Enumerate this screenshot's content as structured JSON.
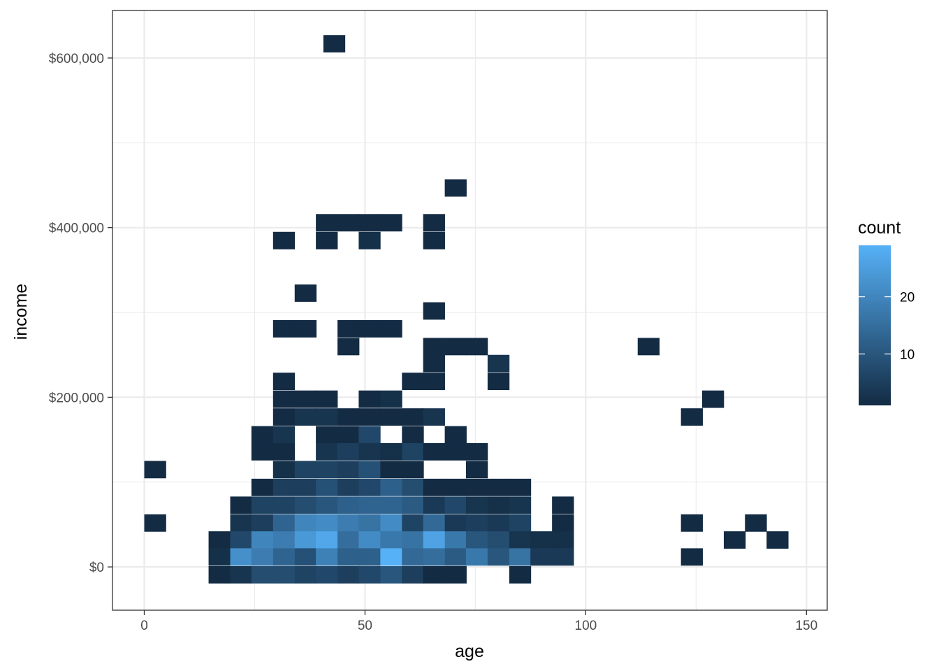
{
  "chart_data": {
    "type": "heatmap",
    "title": "",
    "xlabel": "age",
    "ylabel": "income",
    "xlim": [
      -7.2,
      154.7
    ],
    "ylim": [
      -51000,
      656000
    ],
    "x_ticks": [
      0,
      50,
      100,
      150
    ],
    "x_tick_labels": [
      "0",
      "50",
      "100",
      "150"
    ],
    "y_ticks": [
      0,
      200000,
      400000,
      600000
    ],
    "y_tick_labels": [
      "$0",
      "$200,000",
      "$400,000",
      "$600,000"
    ],
    "grid": true,
    "legend": {
      "title": "count",
      "position": "right",
      "min": 1,
      "max": 29,
      "ticks": [
        10,
        20
      ],
      "tick_labels": [
        "10",
        "20"
      ],
      "color_low": "#132B43",
      "color_high": "#56B1F7"
    },
    "bin_width_x": 4.86,
    "bin_height_y": 20000,
    "bins": [
      {
        "x": 2.43,
        "y": 115000,
        "count": 1
      },
      {
        "x": 2.43,
        "y": 52000,
        "count": 1
      },
      {
        "x": 17.0,
        "y": 32000,
        "count": 1
      },
      {
        "x": 17.0,
        "y": 12000,
        "count": 2
      },
      {
        "x": 17.0,
        "y": -9000,
        "count": 1
      },
      {
        "x": 21.9,
        "y": 73000,
        "count": 1
      },
      {
        "x": 21.9,
        "y": 52000,
        "count": 3
      },
      {
        "x": 21.9,
        "y": 32000,
        "count": 7
      },
      {
        "x": 21.9,
        "y": 12000,
        "count": 22
      },
      {
        "x": 21.9,
        "y": -9000,
        "count": 3
      },
      {
        "x": 26.7,
        "y": 156000,
        "count": 1
      },
      {
        "x": 26.7,
        "y": 136000,
        "count": 1
      },
      {
        "x": 26.7,
        "y": 94000,
        "count": 1
      },
      {
        "x": 26.7,
        "y": 73000,
        "count": 6
      },
      {
        "x": 26.7,
        "y": 52000,
        "count": 5
      },
      {
        "x": 26.7,
        "y": 32000,
        "count": 20
      },
      {
        "x": 26.7,
        "y": 12000,
        "count": 18
      },
      {
        "x": 26.7,
        "y": -9000,
        "count": 8
      },
      {
        "x": 31.6,
        "y": 385000,
        "count": 1
      },
      {
        "x": 31.6,
        "y": 281000,
        "count": 1
      },
      {
        "x": 31.6,
        "y": 219000,
        "count": 1
      },
      {
        "x": 31.6,
        "y": 198000,
        "count": 1
      },
      {
        "x": 31.6,
        "y": 177000,
        "count": 1
      },
      {
        "x": 31.6,
        "y": 156000,
        "count": 3
      },
      {
        "x": 31.6,
        "y": 136000,
        "count": 1
      },
      {
        "x": 31.6,
        "y": 115000,
        "count": 2
      },
      {
        "x": 31.6,
        "y": 94000,
        "count": 5
      },
      {
        "x": 31.6,
        "y": 73000,
        "count": 6
      },
      {
        "x": 31.6,
        "y": 52000,
        "count": 13
      },
      {
        "x": 31.6,
        "y": 32000,
        "count": 18
      },
      {
        "x": 31.6,
        "y": 12000,
        "count": 13
      },
      {
        "x": 31.6,
        "y": -9000,
        "count": 8
      },
      {
        "x": 36.5,
        "y": 323000,
        "count": 1
      },
      {
        "x": 36.5,
        "y": 281000,
        "count": 1
      },
      {
        "x": 36.5,
        "y": 198000,
        "count": 1
      },
      {
        "x": 36.5,
        "y": 177000,
        "count": 3
      },
      {
        "x": 36.5,
        "y": 115000,
        "count": 6
      },
      {
        "x": 36.5,
        "y": 94000,
        "count": 5
      },
      {
        "x": 36.5,
        "y": 73000,
        "count": 8
      },
      {
        "x": 36.5,
        "y": 52000,
        "count": 20
      },
      {
        "x": 36.5,
        "y": 32000,
        "count": 24
      },
      {
        "x": 36.5,
        "y": 12000,
        "count": 9
      },
      {
        "x": 36.5,
        "y": -9000,
        "count": 6
      },
      {
        "x": 41.3,
        "y": 406000,
        "count": 1
      },
      {
        "x": 41.3,
        "y": 385000,
        "count": 1
      },
      {
        "x": 41.3,
        "y": 198000,
        "count": 1
      },
      {
        "x": 41.3,
        "y": 177000,
        "count": 3
      },
      {
        "x": 41.3,
        "y": 156000,
        "count": 1
      },
      {
        "x": 41.3,
        "y": 136000,
        "count": 3
      },
      {
        "x": 41.3,
        "y": 115000,
        "count": 6
      },
      {
        "x": 41.3,
        "y": 94000,
        "count": 9
      },
      {
        "x": 41.3,
        "y": 73000,
        "count": 10
      },
      {
        "x": 41.3,
        "y": 52000,
        "count": 21
      },
      {
        "x": 41.3,
        "y": 32000,
        "count": 27
      },
      {
        "x": 41.3,
        "y": 12000,
        "count": 19
      },
      {
        "x": 41.3,
        "y": -9000,
        "count": 7
      },
      {
        "x": 43.0,
        "y": 617000,
        "count": 1
      },
      {
        "x": 46.2,
        "y": 406000,
        "count": 1
      },
      {
        "x": 46.2,
        "y": 281000,
        "count": 1
      },
      {
        "x": 46.2,
        "y": 260000,
        "count": 1
      },
      {
        "x": 46.2,
        "y": 177000,
        "count": 1
      },
      {
        "x": 46.2,
        "y": 156000,
        "count": 1
      },
      {
        "x": 46.2,
        "y": 136000,
        "count": 5
      },
      {
        "x": 46.2,
        "y": 115000,
        "count": 5
      },
      {
        "x": 46.2,
        "y": 94000,
        "count": 5
      },
      {
        "x": 46.2,
        "y": 73000,
        "count": 12
      },
      {
        "x": 46.2,
        "y": 52000,
        "count": 18
      },
      {
        "x": 46.2,
        "y": 32000,
        "count": 15
      },
      {
        "x": 46.2,
        "y": 12000,
        "count": 12
      },
      {
        "x": 46.2,
        "y": -9000,
        "count": 5
      },
      {
        "x": 51.0,
        "y": 406000,
        "count": 1
      },
      {
        "x": 51.0,
        "y": 385000,
        "count": 2
      },
      {
        "x": 51.0,
        "y": 281000,
        "count": 1
      },
      {
        "x": 51.0,
        "y": 198000,
        "count": 1
      },
      {
        "x": 51.0,
        "y": 177000,
        "count": 1
      },
      {
        "x": 51.0,
        "y": 156000,
        "count": 7
      },
      {
        "x": 51.0,
        "y": 136000,
        "count": 3
      },
      {
        "x": 51.0,
        "y": 115000,
        "count": 9
      },
      {
        "x": 51.0,
        "y": 94000,
        "count": 7
      },
      {
        "x": 51.0,
        "y": 73000,
        "count": 13
      },
      {
        "x": 51.0,
        "y": 52000,
        "count": 16
      },
      {
        "x": 51.0,
        "y": 32000,
        "count": 21
      },
      {
        "x": 51.0,
        "y": 12000,
        "count": 12
      },
      {
        "x": 51.0,
        "y": -9000,
        "count": 7
      },
      {
        "x": 55.9,
        "y": 406000,
        "count": 1
      },
      {
        "x": 55.9,
        "y": 281000,
        "count": 1
      },
      {
        "x": 55.9,
        "y": 198000,
        "count": 2
      },
      {
        "x": 55.9,
        "y": 177000,
        "count": 1
      },
      {
        "x": 55.9,
        "y": 136000,
        "count": 2
      },
      {
        "x": 55.9,
        "y": 115000,
        "count": 1
      },
      {
        "x": 55.9,
        "y": 94000,
        "count": 12
      },
      {
        "x": 55.9,
        "y": 73000,
        "count": 13
      },
      {
        "x": 55.9,
        "y": 52000,
        "count": 21
      },
      {
        "x": 55.9,
        "y": 32000,
        "count": 17
      },
      {
        "x": 55.9,
        "y": 12000,
        "count": 29
      },
      {
        "x": 55.9,
        "y": -9000,
        "count": 10
      },
      {
        "x": 60.8,
        "y": 219000,
        "count": 1
      },
      {
        "x": 60.8,
        "y": 177000,
        "count": 1
      },
      {
        "x": 60.8,
        "y": 156000,
        "count": 1
      },
      {
        "x": 60.8,
        "y": 136000,
        "count": 6
      },
      {
        "x": 60.8,
        "y": 115000,
        "count": 1
      },
      {
        "x": 60.8,
        "y": 94000,
        "count": 8
      },
      {
        "x": 60.8,
        "y": 73000,
        "count": 11
      },
      {
        "x": 60.8,
        "y": 52000,
        "count": 6
      },
      {
        "x": 60.8,
        "y": 32000,
        "count": 16
      },
      {
        "x": 60.8,
        "y": 12000,
        "count": 14
      },
      {
        "x": 60.8,
        "y": -9000,
        "count": 5
      },
      {
        "x": 65.6,
        "y": 406000,
        "count": 1
      },
      {
        "x": 65.6,
        "y": 385000,
        "count": 1
      },
      {
        "x": 65.6,
        "y": 302000,
        "count": 1
      },
      {
        "x": 65.6,
        "y": 260000,
        "count": 1
      },
      {
        "x": 65.6,
        "y": 240000,
        "count": 1
      },
      {
        "x": 65.6,
        "y": 219000,
        "count": 1
      },
      {
        "x": 65.6,
        "y": 177000,
        "count": 3
      },
      {
        "x": 65.6,
        "y": 136000,
        "count": 1
      },
      {
        "x": 65.6,
        "y": 94000,
        "count": 1
      },
      {
        "x": 65.6,
        "y": 73000,
        "count": 4
      },
      {
        "x": 65.6,
        "y": 52000,
        "count": 14
      },
      {
        "x": 65.6,
        "y": 32000,
        "count": 26
      },
      {
        "x": 65.6,
        "y": 12000,
        "count": 15
      },
      {
        "x": 65.6,
        "y": -9000,
        "count": 1
      },
      {
        "x": 70.5,
        "y": 447000,
        "count": 1
      },
      {
        "x": 70.5,
        "y": 260000,
        "count": 1
      },
      {
        "x": 70.5,
        "y": 156000,
        "count": 1
      },
      {
        "x": 70.5,
        "y": 136000,
        "count": 1
      },
      {
        "x": 70.5,
        "y": 94000,
        "count": 1
      },
      {
        "x": 70.5,
        "y": 73000,
        "count": 7
      },
      {
        "x": 70.5,
        "y": 52000,
        "count": 4
      },
      {
        "x": 70.5,
        "y": 32000,
        "count": 17
      },
      {
        "x": 70.5,
        "y": 12000,
        "count": 11
      },
      {
        "x": 70.5,
        "y": -9000,
        "count": 1
      },
      {
        "x": 75.3,
        "y": 260000,
        "count": 1
      },
      {
        "x": 75.3,
        "y": 136000,
        "count": 1
      },
      {
        "x": 75.3,
        "y": 115000,
        "count": 1
      },
      {
        "x": 75.3,
        "y": 94000,
        "count": 1
      },
      {
        "x": 75.3,
        "y": 73000,
        "count": 3
      },
      {
        "x": 75.3,
        "y": 52000,
        "count": 5
      },
      {
        "x": 75.3,
        "y": 32000,
        "count": 10
      },
      {
        "x": 75.3,
        "y": 12000,
        "count": 17
      },
      {
        "x": 80.2,
        "y": 240000,
        "count": 3
      },
      {
        "x": 80.2,
        "y": 219000,
        "count": 1
      },
      {
        "x": 80.2,
        "y": 94000,
        "count": 1
      },
      {
        "x": 80.2,
        "y": 73000,
        "count": 2
      },
      {
        "x": 80.2,
        "y": 52000,
        "count": 4
      },
      {
        "x": 80.2,
        "y": 32000,
        "count": 8
      },
      {
        "x": 80.2,
        "y": 12000,
        "count": 10
      },
      {
        "x": 85.1,
        "y": 94000,
        "count": 1
      },
      {
        "x": 85.1,
        "y": 73000,
        "count": 3
      },
      {
        "x": 85.1,
        "y": 52000,
        "count": 6
      },
      {
        "x": 85.1,
        "y": 32000,
        "count": 3
      },
      {
        "x": 85.1,
        "y": 12000,
        "count": 16
      },
      {
        "x": 85.1,
        "y": -9000,
        "count": 1
      },
      {
        "x": 89.9,
        "y": 32000,
        "count": 2
      },
      {
        "x": 89.9,
        "y": 12000,
        "count": 4
      },
      {
        "x": 94.8,
        "y": 73000,
        "count": 1
      },
      {
        "x": 94.8,
        "y": 52000,
        "count": 1
      },
      {
        "x": 94.8,
        "y": 32000,
        "count": 2
      },
      {
        "x": 94.8,
        "y": 12000,
        "count": 4
      },
      {
        "x": 114.2,
        "y": 260000,
        "count": 1
      },
      {
        "x": 124.0,
        "y": 177000,
        "count": 1
      },
      {
        "x": 124.0,
        "y": 52000,
        "count": 1
      },
      {
        "x": 124.0,
        "y": 12000,
        "count": 1
      },
      {
        "x": 128.8,
        "y": 198000,
        "count": 1
      },
      {
        "x": 133.7,
        "y": 32000,
        "count": 1
      },
      {
        "x": 138.5,
        "y": 52000,
        "count": 1
      },
      {
        "x": 143.4,
        "y": 32000,
        "count": 1
      }
    ]
  }
}
